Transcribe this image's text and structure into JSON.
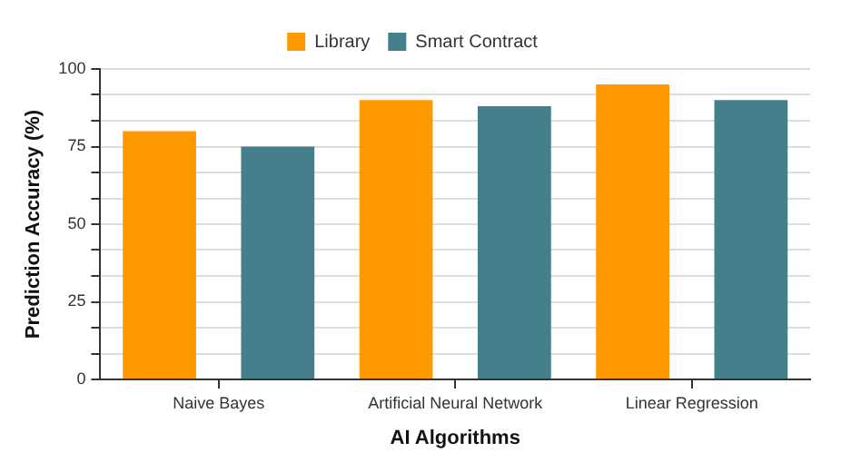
{
  "chart_data": {
    "type": "bar",
    "xlabel": "AI Algorithms",
    "ylabel": "Prediction Accuracy (%)",
    "categories": [
      "Naive Bayes",
      "Artificial Neural Network",
      "Linear Regression"
    ],
    "series": [
      {
        "name": "Library",
        "color": "#ff9900",
        "values": [
          80,
          90,
          95
        ]
      },
      {
        "name": "Smart Contract",
        "color": "#457f8c",
        "values": [
          75,
          88,
          90
        ]
      }
    ],
    "ylim": [
      0,
      100
    ],
    "yticks": [
      0,
      {
        "value": 8.33,
        "label": null
      },
      {
        "value": 16.67,
        "label": null
      },
      25,
      {
        "value": 33.33,
        "label": null
      },
      {
        "value": 41.67,
        "label": null
      },
      50,
      {
        "value": 58.33,
        "label": null
      },
      {
        "value": 66.67,
        "label": null
      },
      75,
      {
        "value": 83.33,
        "label": null
      },
      {
        "value": 91.67,
        "label": null
      },
      100
    ],
    "grid": "y",
    "legend": "top"
  }
}
